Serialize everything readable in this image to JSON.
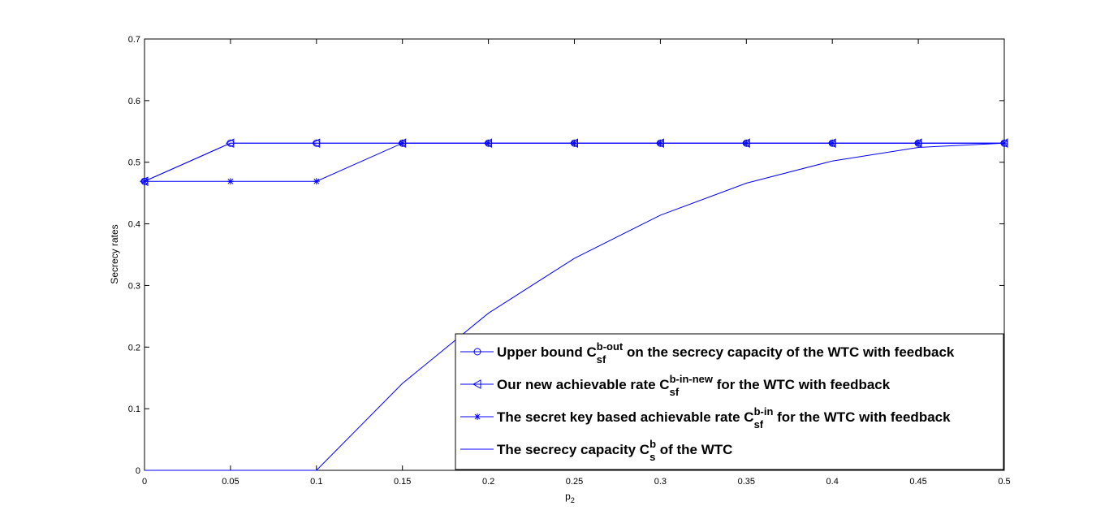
{
  "chart_data": {
    "type": "line",
    "xlabel": "p",
    "xlabel_sub": "2",
    "ylabel": "Secrecy rates",
    "xlim": [
      0,
      0.5
    ],
    "ylim": [
      0,
      0.7
    ],
    "x_ticks": [
      "0",
      "0.05",
      "0.1",
      "0.15",
      "0.2",
      "0.25",
      "0.3",
      "0.35",
      "0.4",
      "0.45",
      "0.5"
    ],
    "y_ticks": [
      "0",
      "0.1",
      "0.2",
      "0.3",
      "0.4",
      "0.5",
      "0.6",
      "0.7"
    ],
    "grid": false,
    "legend_position": "bottom-right",
    "line_color": "#0000ff",
    "x": [
      0,
      0.05,
      0.1,
      0.15,
      0.2,
      0.25,
      0.3,
      0.35,
      0.4,
      0.45,
      0.5
    ],
    "series": [
      {
        "marker": "circle",
        "legend": {
          "pre": "Upper bound C",
          "sup": "b-out",
          "sub": "sf",
          "post": " on the secrecy capacity of the WTC with feedback"
        },
        "values": [
          0.469,
          0.531,
          0.531,
          0.531,
          0.531,
          0.531,
          0.531,
          0.531,
          0.531,
          0.531,
          0.531
        ]
      },
      {
        "marker": "triangle-left",
        "legend": {
          "pre": "Our new achievable rate C",
          "sup": "b-in-new",
          "sub": "sf",
          "post": " for the WTC with feedback"
        },
        "values": [
          0.469,
          0.531,
          0.531,
          0.531,
          0.531,
          0.531,
          0.531,
          0.531,
          0.531,
          0.531,
          0.531
        ]
      },
      {
        "marker": "star",
        "legend": {
          "pre": "The secret key based achievable rate C",
          "sup": "b-in",
          "sub": "sf",
          "post": " for the WTC with feedback"
        },
        "values": [
          0.469,
          0.469,
          0.469,
          0.531,
          0.531,
          0.531,
          0.531,
          0.531,
          0.531,
          0.531,
          0.531
        ]
      },
      {
        "marker": "none",
        "legend": {
          "pre": "The secrecy capacity C",
          "sup": "b",
          "sub": "s",
          "post": " of the WTC"
        },
        "values": [
          0,
          0,
          0,
          0.141,
          0.255,
          0.344,
          0.414,
          0.466,
          0.502,
          0.524,
          0.531
        ]
      }
    ]
  }
}
